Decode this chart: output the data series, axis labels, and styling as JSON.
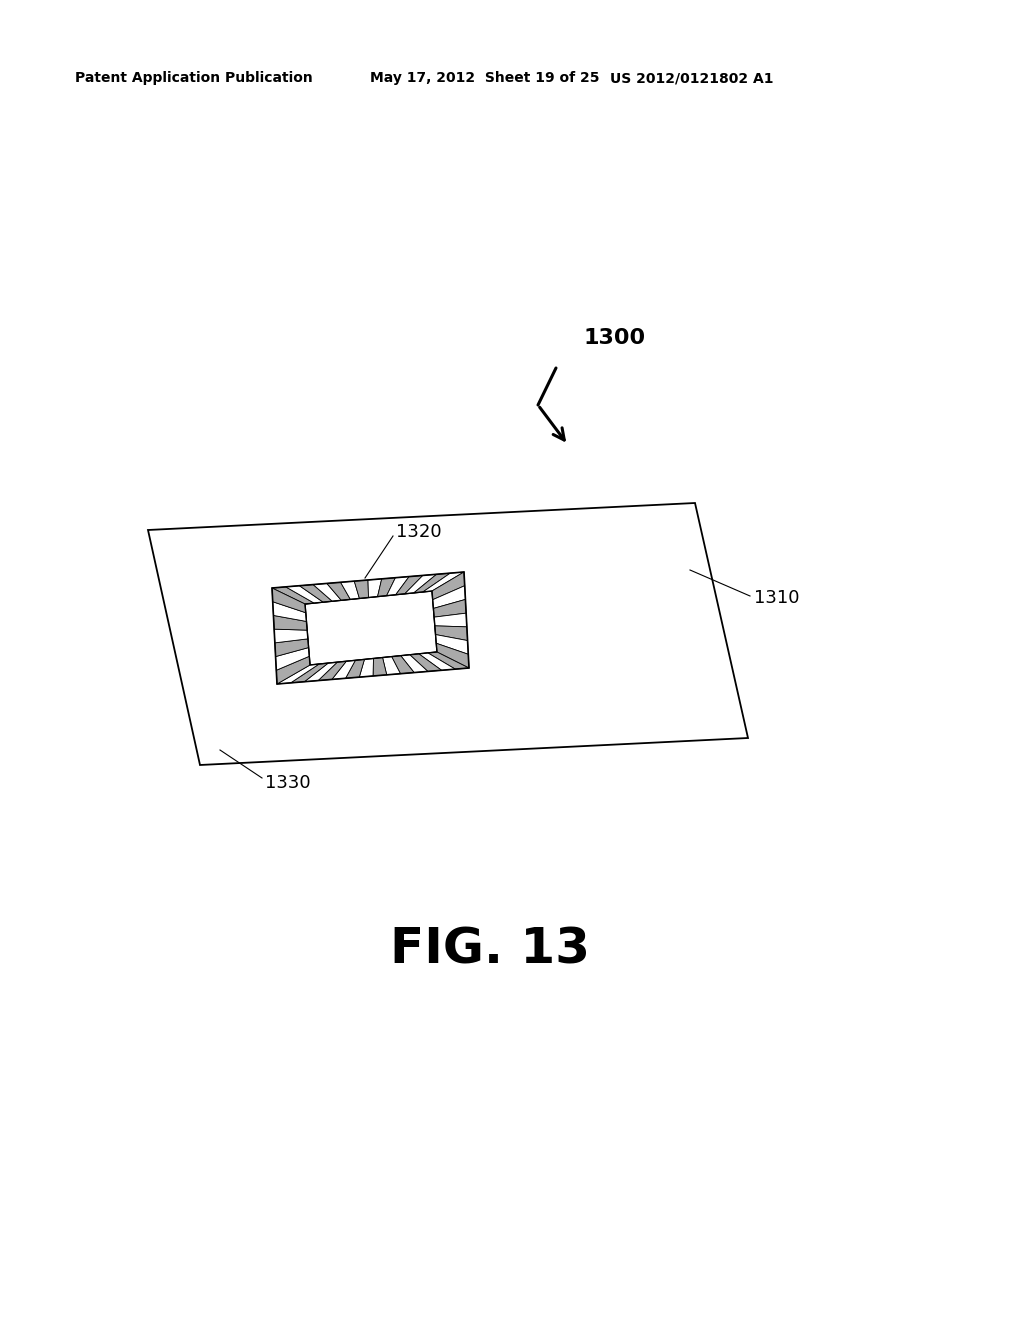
{
  "background_color": "#ffffff",
  "header_left": "Patent Application Publication",
  "header_center": "May 17, 2012  Sheet 19 of 25",
  "header_right": "US 2012/0121802 A1",
  "header_fontsize": 10,
  "fig_label": "FIG. 13",
  "fig_label_fontsize": 36,
  "ref_1300": "1300",
  "ref_1310": "1310",
  "ref_1320": "1320",
  "ref_1330": "1330",
  "ref_fontsize": 13
}
